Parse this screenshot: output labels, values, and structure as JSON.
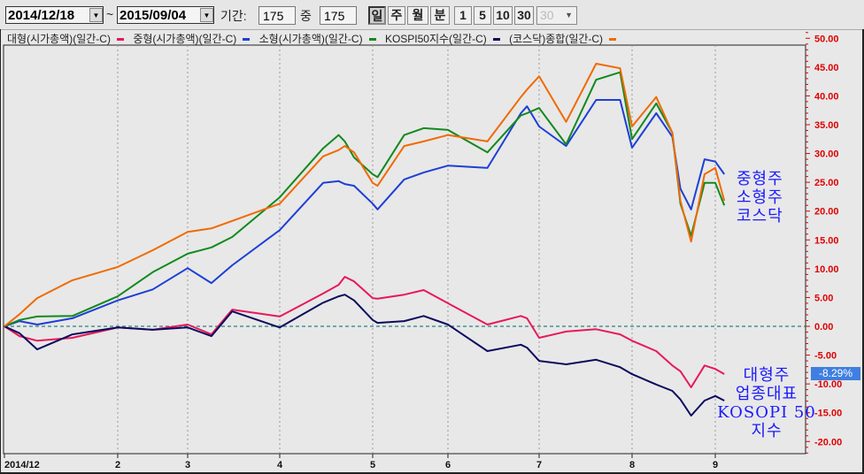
{
  "toolbar": {
    "start_date": "2014/12/18",
    "tilde": "~",
    "end_date": "2015/09/04",
    "period_label": "기간:",
    "period_value": "175",
    "of_label": "중",
    "of_value": "175",
    "period_buttons": [
      "일",
      "주",
      "월",
      "분"
    ],
    "active_period": "일",
    "minute_buttons": [
      "1",
      "5",
      "10",
      "30"
    ],
    "minute_select": "30"
  },
  "legend": [
    {
      "label": "대형(시가총액)(일간-C)",
      "color": "#e8185a"
    },
    {
      "label": "중형(시가총액)(일간-C)",
      "color": "#1d3fd6"
    },
    {
      "label": "소형(시가총액)(일간-C)",
      "color": "#118a1e"
    },
    {
      "label": "KOSPI50지수(일간-C)",
      "color": "#0b0b5e"
    },
    {
      "label": "(코스닥)종합(일간-C)",
      "color": "#f06a00"
    }
  ],
  "annotations": {
    "top": [
      "중형주",
      "소형주",
      "코스닥"
    ],
    "bottom": [
      "대형주",
      "업종대표",
      "KOSOPI 50",
      "지수"
    ]
  },
  "last_value_badge": "-8.29%",
  "chart_data": {
    "type": "line",
    "x": [
      "2014-12-18",
      "2014-12-24",
      "2014-12-31",
      "2015-01-14",
      "2015-02-01",
      "2015-02-15",
      "2015-03-01",
      "2015-03-09",
      "2015-03-16",
      "2015-04-01",
      "2015-04-15",
      "2015-04-20",
      "2015-04-22",
      "2015-04-25",
      "2015-05-01",
      "2015-05-03",
      "2015-05-14",
      "2015-05-22",
      "2015-06-01",
      "2015-06-14",
      "2015-06-25",
      "2015-06-27",
      "2015-07-01",
      "2015-07-10",
      "2015-07-20",
      "2015-07-28",
      "2015-08-01",
      "2015-08-10",
      "2015-08-16",
      "2015-08-19",
      "2015-08-23",
      "2015-08-28",
      "2015-09-01",
      "2015-09-04"
    ],
    "x_ticks": [
      {
        "date": "2014-12-18",
        "label": "2014/12"
      },
      {
        "date": "2015-02-01",
        "label": "2"
      },
      {
        "date": "2015-03-01",
        "label": "3"
      },
      {
        "date": "2015-04-01",
        "label": "4"
      },
      {
        "date": "2015-05-01",
        "label": "5"
      },
      {
        "date": "2015-06-01",
        "label": "6"
      },
      {
        "date": "2015-07-01",
        "label": "7"
      },
      {
        "date": "2015-08-01",
        "label": "8"
      },
      {
        "date": "2015-09-01",
        "label": "9"
      }
    ],
    "ylim": [
      -22,
      51
    ],
    "y_ticks": [
      "50.00",
      "45.00",
      "40.00",
      "35.00",
      "30.00",
      "25.00",
      "20.00",
      "15.00",
      "10.00",
      "5.00",
      "0.00",
      "-5.00",
      "-10.00",
      "-15.00",
      "-20.00"
    ],
    "y_axis_side": "right",
    "y_tick_color": "#e00000",
    "grid": "vertical dotted at month ticks; dashed zero line",
    "zero_line_color": "#2a8080",
    "series": [
      {
        "name": "대형(시가총액)(일간-C)",
        "color": "#e8185a",
        "values": [
          0,
          -1.7,
          -2.5,
          -2.0,
          -0.2,
          -0.6,
          0.3,
          -1.4,
          2.9,
          1.7,
          5.7,
          7.2,
          8.6,
          7.8,
          4.9,
          4.8,
          5.5,
          6.3,
          4.0,
          0.3,
          1.8,
          1.4,
          -2.0,
          -0.9,
          -0.5,
          -1.4,
          -2.5,
          -4.3,
          -6.8,
          -7.8,
          -10.6,
          -6.8,
          -7.4,
          -8.29
        ]
      },
      {
        "name": "중형(시가총액)(일간-C)",
        "color": "#1d3fd6",
        "values": [
          0,
          0.9,
          0.3,
          1.4,
          4.5,
          6.4,
          10.1,
          7.5,
          10.6,
          16.7,
          24.9,
          25.2,
          24.7,
          24.4,
          21.3,
          20.3,
          25.5,
          26.7,
          27.9,
          27.5,
          37.0,
          38.2,
          34.7,
          31.3,
          39.3,
          39.3,
          31.0,
          37.0,
          32.9,
          23.9,
          20.3,
          29.0,
          28.6,
          26.4
        ]
      },
      {
        "name": "소형(시가총액)(일간-C)",
        "color": "#118a1e",
        "values": [
          0,
          1.1,
          1.7,
          1.8,
          5.2,
          9.4,
          12.6,
          13.7,
          15.5,
          22.4,
          30.9,
          33.2,
          32.1,
          29.3,
          26.4,
          25.9,
          33.2,
          34.4,
          34.1,
          30.2,
          36.6,
          37.0,
          37.9,
          31.6,
          42.8,
          44.1,
          32.5,
          38.7,
          33.6,
          21.3,
          15.7,
          24.9,
          24.9,
          21.0
        ]
      },
      {
        "name": "KOSPI50지수(일간-C)",
        "color": "#0b0b5e",
        "values": [
          0,
          -1.2,
          -4.0,
          -1.4,
          -0.2,
          -0.6,
          -0.2,
          -1.7,
          2.6,
          -0.2,
          4.1,
          5.2,
          5.5,
          4.5,
          1.1,
          0.6,
          0.9,
          1.8,
          0.3,
          -4.3,
          -3.2,
          -3.7,
          -6.0,
          -6.6,
          -5.8,
          -7.1,
          -8.3,
          -10.1,
          -11.2,
          -12.7,
          -15.5,
          -12.9,
          -12.1,
          -12.9
        ]
      },
      {
        "name": "(코스닥)종합(일간-C)",
        "color": "#f06a00",
        "values": [
          0,
          2.1,
          4.9,
          8.0,
          10.3,
          13.2,
          16.4,
          17.0,
          18.3,
          21.3,
          29.5,
          30.6,
          31.3,
          30.2,
          24.9,
          24.4,
          31.3,
          32.1,
          33.2,
          32.1,
          39.8,
          41.1,
          43.4,
          35.5,
          45.6,
          44.8,
          34.7,
          39.8,
          33.6,
          21.8,
          14.7,
          26.4,
          27.5,
          21.8
        ]
      }
    ]
  }
}
